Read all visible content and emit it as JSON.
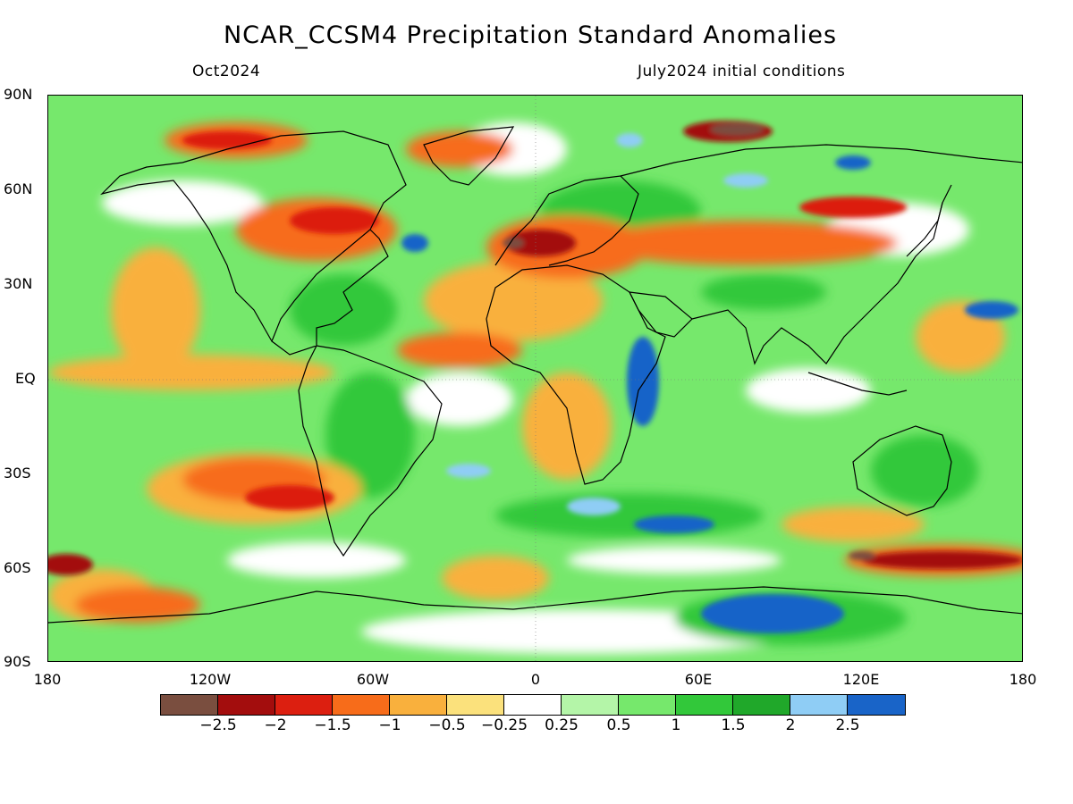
{
  "title": "NCAR_CCSM4 Precipitation Standard Anomalies",
  "valid_month": "Oct2024",
  "init_conditions": "July2024 initial conditions",
  "lat_labels": [
    "90N",
    "60N",
    "30N",
    "EQ",
    "30S",
    "60S",
    "90S"
  ],
  "lon_labels": [
    "180",
    "120W",
    "60W",
    "0",
    "60E",
    "120E",
    "180"
  ],
  "colorbar": {
    "colors": [
      "#7a4e3f",
      "#a30d0d",
      "#dc1f10",
      "#f76c1a",
      "#f9b03d",
      "#fbe17c",
      "#ffffff",
      "#b4f5a8",
      "#76e86c",
      "#32c83a",
      "#20a82a",
      "#8fcdf5",
      "#1964c8"
    ],
    "labels": [
      "-2.5",
      "-2",
      "-1.5",
      "-1",
      "-0.5",
      "-0.25",
      "0.25",
      "0.5",
      "1",
      "1.5",
      "2",
      "2.5"
    ]
  },
  "map": {
    "variable": "precipitation standard anomaly",
    "projection": "equirectangular",
    "lon_range": [
      -180,
      180
    ],
    "lat_range": [
      -90,
      90
    ]
  }
}
